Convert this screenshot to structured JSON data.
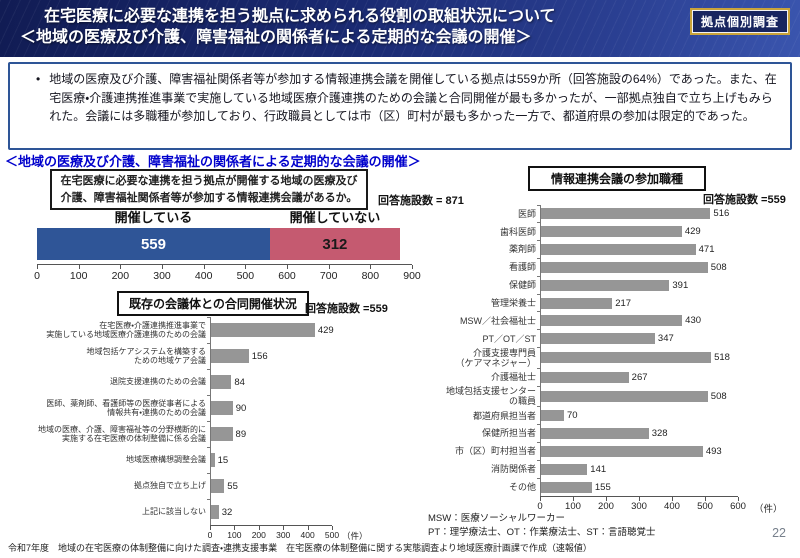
{
  "header": {
    "title_line1": "在宅医療に必要な連携を担う拠点に求められる役割の取組状況について",
    "title_line2": "＜地域の医療及び介護、障害福祉の関係者による定期的な会議の開催＞",
    "badge": "拠点個別調査"
  },
  "summary": {
    "bullet_marker": "•",
    "text": "地域の医療及び介護、障害福祉関係者等が参加する情報連携会議を開催している拠点は559か所（回答施設の64%）であった。また、在宅医療・介護連携推進事業で実施している地域医療介護連携のための会議と合同開催が最も多かったが、一部拠点独自で立ち上げもみられた。会議には多職種が参加しており、行政職員としては市（区）町村が最も多かった一方で、都道府県の参加は限定的であった。",
    "border_color": "#2E5597"
  },
  "section_heading": "＜地域の医療及び介護、障害福祉の関係者による定期的な会議の開催＞",
  "question_box": "在宅医療に必要な連携を担う拠点が開催する地域の医療及び\n介護、障害福祉関係者等が参加する情報連携会議があるか。",
  "chart_data": [
    {
      "id": "meeting-held",
      "type": "bar",
      "subtype": "stacked-horizontal",
      "respondents_label": "回答施設数 = 871",
      "series": [
        {
          "name": "開催している",
          "value": 559,
          "color": "#2F5597",
          "text_color": "#FFFFFF"
        },
        {
          "name": "開催していない",
          "value": 312,
          "color": "#C55A70",
          "text_color": "#1A1A1A"
        }
      ],
      "total": 871,
      "xlim": [
        0,
        900
      ],
      "ticks": [
        0,
        100,
        200,
        300,
        400,
        500,
        600,
        700,
        800,
        900
      ],
      "unit": ""
    },
    {
      "id": "joint-meetings",
      "type": "bar",
      "subtype": "horizontal",
      "title": "既存の会議体との合同開催状況",
      "respondents_label": "回答施設数 =559",
      "categories": [
        "在宅医療・介護連携推進事業で\n実施している地域医療介護連携のための会議",
        "地域包括ケアシステムを構築する\nための地域ケア会議",
        "退院支援連携のための会議",
        "医師、薬剤師、看護師等の医療従事者による\n情報共有・連携のための会議",
        "地域の医療、介護、障害福祉等の分野横断的に\n実施する在宅医療の体制整備に係る会議",
        "地域医療構想調整会議",
        "拠点独自で立ち上げ",
        "上記に該当しない"
      ],
      "values": [
        429,
        156,
        84,
        90,
        89,
        15,
        55,
        32
      ],
      "xlim": [
        0,
        500
      ],
      "ticks": [
        0,
        100,
        200,
        300,
        400,
        500
      ],
      "unit": "（件）",
      "bar_color": "#969696"
    },
    {
      "id": "participants",
      "type": "bar",
      "subtype": "horizontal",
      "title": "情報連携会議の参加職種",
      "respondents_label": "回答施設数 =559",
      "categories": [
        "医師",
        "歯科医師",
        "薬剤師",
        "看護師",
        "保健師",
        "管理栄養士",
        "MSW／社会福祉士",
        "PT／OT／ST",
        "介護支援専門員\n（ケアマネジャー）",
        "介護福祉士",
        "地域包括支援センター\nの職員",
        "都道府県担当者",
        "保健所担当者",
        "市（区）町村担当者",
        "消防関係者",
        "その他"
      ],
      "values": [
        516,
        429,
        471,
        508,
        391,
        217,
        430,
        347,
        518,
        267,
        508,
        70,
        328,
        493,
        141,
        155
      ],
      "xlim": [
        0,
        600
      ],
      "ticks": [
        0,
        100,
        200,
        300,
        400,
        500,
        600
      ],
      "unit": "（件）",
      "bar_color": "#969696"
    }
  ],
  "footnotes": {
    "line1": "MSW：医療ソーシャルワーカー",
    "line2": "PT：理学療法士、OT：作業療法士、ST：言語聴覚士"
  },
  "footer": {
    "source": "令和7年度　地域の在宅医療の体制整備に向けた調査・連携支援事業　在宅医療の体制整備に関する実態調査より地域医療計画課で作成（速報値）",
    "page": "22"
  }
}
